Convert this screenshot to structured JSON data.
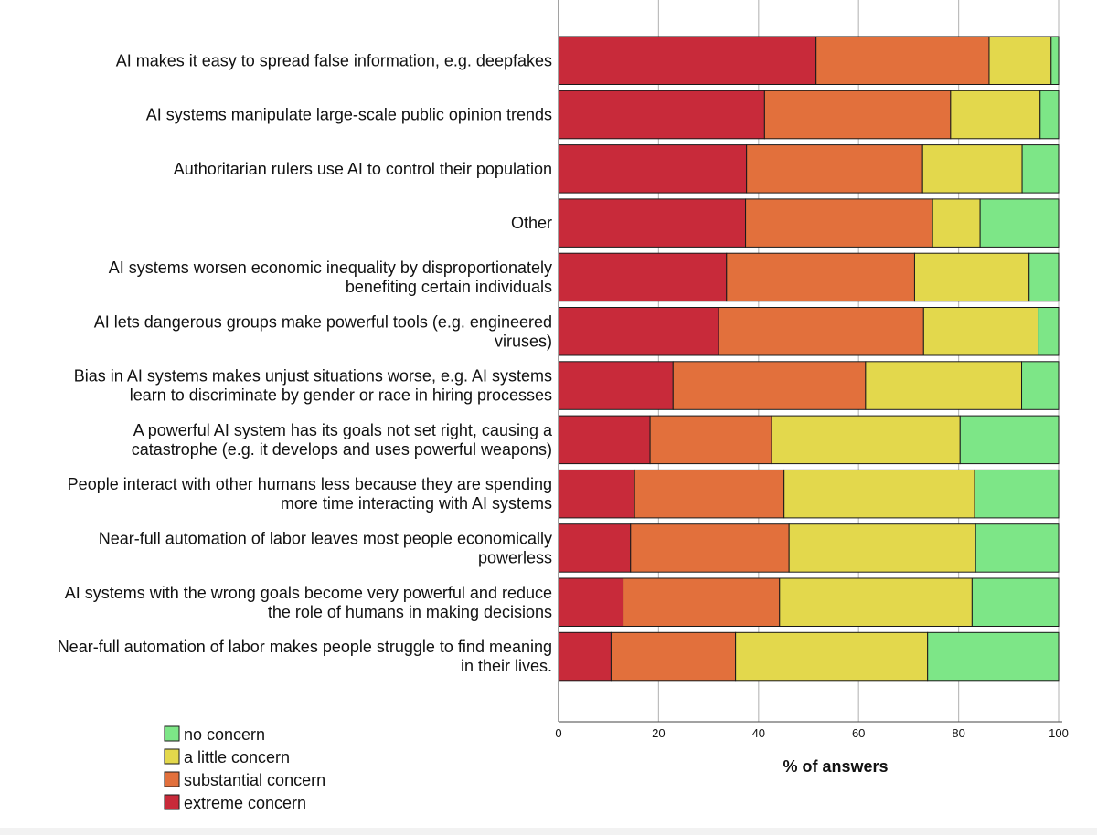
{
  "chart_data": {
    "type": "bar",
    "orientation": "horizontal",
    "stacked": true,
    "title": "",
    "xlabel": "% of answers",
    "ylabel": "",
    "xlim": [
      0,
      100
    ],
    "xticks": [
      "0",
      "20",
      "40",
      "60",
      "80",
      "100"
    ],
    "grid": true,
    "legend_position": "bottom-left",
    "categories": [
      [
        "AI makes it easy to spread false information, e.g. deepfakes"
      ],
      [
        "AI systems manipulate large-scale public opinion trends"
      ],
      [
        "Authoritarian rulers use AI to control their population"
      ],
      [
        "Other"
      ],
      [
        "AI systems worsen economic inequality by disproportionately",
        "benefiting certain individuals"
      ],
      [
        "AI lets dangerous groups make powerful tools (e.g. engineered",
        "viruses)"
      ],
      [
        "Bias in AI systems makes unjust situations worse, e.g. AI systems",
        "learn to discriminate by gender or race in hiring processes"
      ],
      [
        "A powerful AI system has its goals not set right, causing a",
        "catastrophe (e.g. it develops and uses powerful weapons)"
      ],
      [
        "People interact with other humans less because they are spending",
        "more time interacting with AI systems"
      ],
      [
        "Near-full automation of labor leaves most people economically",
        "powerless"
      ],
      [
        "AI systems with the wrong goals become very powerful and reduce",
        "the role of humans in making decisions"
      ],
      [
        "Near-full automation of labor makes people struggle to find meaning",
        "in their lives."
      ]
    ],
    "series": [
      {
        "name": "extreme concern",
        "color": "#c82a3a",
        "values": [
          51.5,
          41.2,
          37.6,
          37.4,
          33.6,
          32.0,
          22.9,
          18.3,
          15.2,
          14.4,
          12.9,
          10.5
        ]
      },
      {
        "name": "substantial concern",
        "color": "#e2703c",
        "values": [
          34.6,
          37.2,
          35.2,
          37.4,
          37.6,
          41.0,
          38.5,
          24.3,
          29.9,
          31.7,
          31.3,
          24.9
        ]
      },
      {
        "name": "a little concern",
        "color": "#e3d84c",
        "values": [
          12.4,
          17.9,
          19.9,
          9.5,
          22.9,
          22.9,
          31.2,
          37.7,
          38.1,
          37.3,
          38.5,
          38.4
        ]
      },
      {
        "name": "no concern",
        "color": "#7de687",
        "values": [
          1.5,
          3.7,
          7.3,
          15.7,
          5.9,
          4.1,
          7.4,
          19.7,
          16.8,
          16.6,
          17.3,
          26.2
        ]
      }
    ],
    "legend_order": [
      "no concern",
      "a little concern",
      "substantial concern",
      "extreme concern"
    ]
  }
}
